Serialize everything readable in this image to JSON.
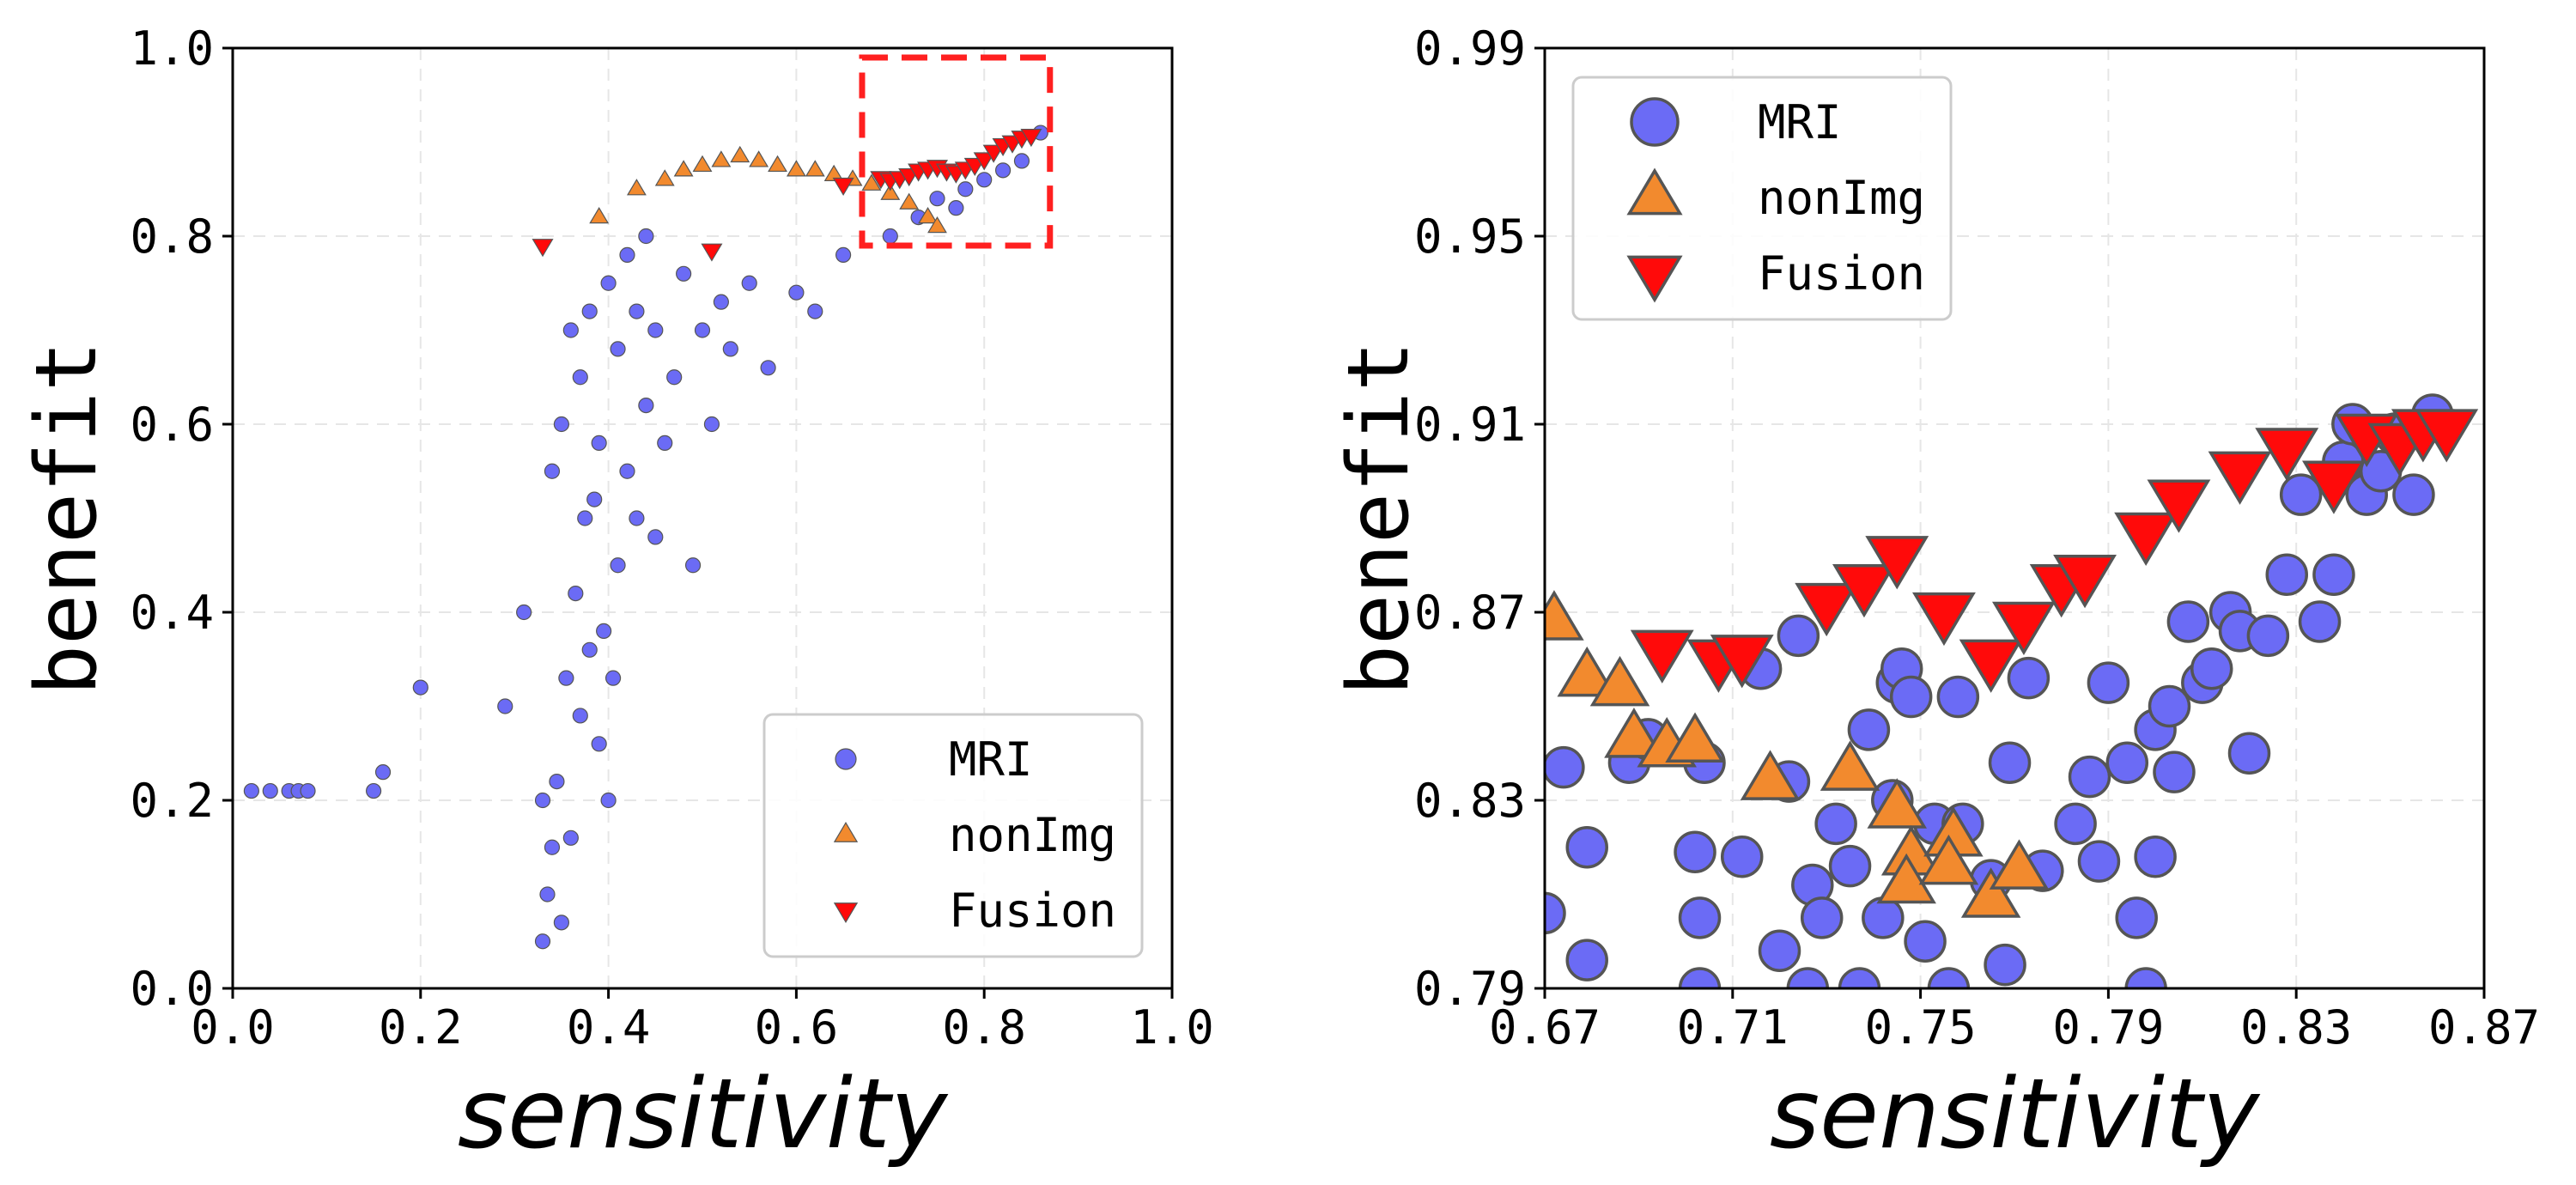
{
  "colors": {
    "mri": "#6b6bf5",
    "nonimg": "#f28a2e",
    "fusion": "#ff0a0a",
    "edge": "#555555",
    "zoom_box": "#ff2020"
  },
  "chart_data": [
    {
      "type": "scatter",
      "xlabel": "sensitivity",
      "ylabel": "benefit",
      "xlim": [
        0.0,
        1.0
      ],
      "ylim": [
        0.0,
        1.0
      ],
      "xticks": [
        "0.0",
        "0.2",
        "0.4",
        "0.6",
        "0.8",
        "1.0"
      ],
      "yticks": [
        "0.0",
        "0.2",
        "0.4",
        "0.6",
        "0.8",
        "1.0"
      ],
      "grid": true,
      "legend_position": "lower-right",
      "zoom_box": {
        "x": [
          0.67,
          0.87
        ],
        "y": [
          0.79,
          0.99
        ]
      },
      "series": [
        {
          "name": "MRI",
          "marker": "circle",
          "x": [
            0.02,
            0.04,
            0.06,
            0.07,
            0.08,
            0.15,
            0.16,
            0.2,
            0.29,
            0.31,
            0.33,
            0.33,
            0.335,
            0.34,
            0.34,
            0.345,
            0.35,
            0.35,
            0.355,
            0.36,
            0.36,
            0.365,
            0.37,
            0.37,
            0.375,
            0.38,
            0.38,
            0.385,
            0.39,
            0.39,
            0.395,
            0.4,
            0.4,
            0.405,
            0.41,
            0.41,
            0.42,
            0.42,
            0.43,
            0.43,
            0.44,
            0.44,
            0.45,
            0.45,
            0.46,
            0.47,
            0.48,
            0.49,
            0.5,
            0.51,
            0.52,
            0.53,
            0.55,
            0.57,
            0.6,
            0.62,
            0.65,
            0.7,
            0.73,
            0.75,
            0.77,
            0.78,
            0.8,
            0.82,
            0.84,
            0.86
          ],
          "y": [
            0.21,
            0.21,
            0.21,
            0.21,
            0.21,
            0.21,
            0.23,
            0.32,
            0.3,
            0.4,
            0.05,
            0.2,
            0.1,
            0.15,
            0.55,
            0.22,
            0.07,
            0.6,
            0.33,
            0.16,
            0.7,
            0.42,
            0.29,
            0.65,
            0.5,
            0.36,
            0.72,
            0.52,
            0.26,
            0.58,
            0.38,
            0.2,
            0.75,
            0.33,
            0.45,
            0.68,
            0.55,
            0.78,
            0.5,
            0.72,
            0.62,
            0.8,
            0.48,
            0.7,
            0.58,
            0.65,
            0.76,
            0.45,
            0.7,
            0.6,
            0.73,
            0.68,
            0.75,
            0.66,
            0.74,
            0.72,
            0.78,
            0.8,
            0.82,
            0.84,
            0.83,
            0.85,
            0.86,
            0.87,
            0.88,
            0.91
          ]
        },
        {
          "name": "nonImg",
          "marker": "triangle-up",
          "x": [
            0.39,
            0.43,
            0.46,
            0.48,
            0.5,
            0.52,
            0.54,
            0.56,
            0.58,
            0.6,
            0.62,
            0.64,
            0.66,
            0.68,
            0.7,
            0.72,
            0.74,
            0.75
          ],
          "y": [
            0.82,
            0.85,
            0.86,
            0.87,
            0.875,
            0.88,
            0.885,
            0.88,
            0.875,
            0.87,
            0.87,
            0.865,
            0.86,
            0.855,
            0.845,
            0.835,
            0.82,
            0.81
          ]
        },
        {
          "name": "Fusion",
          "marker": "triangle-down",
          "x": [
            0.33,
            0.51,
            0.65,
            0.69,
            0.7,
            0.71,
            0.72,
            0.73,
            0.74,
            0.75,
            0.76,
            0.77,
            0.78,
            0.79,
            0.8,
            0.81,
            0.82,
            0.83,
            0.84,
            0.85
          ],
          "y": [
            0.79,
            0.785,
            0.855,
            0.862,
            0.86,
            0.862,
            0.865,
            0.87,
            0.872,
            0.874,
            0.87,
            0.868,
            0.872,
            0.876,
            0.882,
            0.89,
            0.897,
            0.9,
            0.905,
            0.907
          ]
        }
      ]
    },
    {
      "type": "scatter",
      "xlabel": "sensitivity",
      "ylabel": "benefit",
      "xlim": [
        0.67,
        0.87
      ],
      "ylim": [
        0.79,
        0.99
      ],
      "xticks": [
        "0.67",
        "0.71",
        "0.75",
        "0.79",
        "0.83",
        "0.87"
      ],
      "yticks": [
        "0.79",
        "0.83",
        "0.87",
        "0.91",
        "0.95",
        "0.99"
      ],
      "grid": true,
      "legend_position": "top-left",
      "series": [
        {
          "name": "MRI",
          "marker": "circle",
          "x": [
            0.67,
            0.674,
            0.679,
            0.679,
            0.688,
            0.692,
            0.702,
            0.703,
            0.703,
            0.704,
            0.712,
            0.716,
            0.72,
            0.722,
            0.724,
            0.726,
            0.727,
            0.729,
            0.732,
            0.735,
            0.737,
            0.739,
            0.742,
            0.744,
            0.745,
            0.746,
            0.748,
            0.751,
            0.753,
            0.756,
            0.758,
            0.759,
            0.765,
            0.768,
            0.769,
            0.773,
            0.776,
            0.783,
            0.786,
            0.788,
            0.79,
            0.794,
            0.796,
            0.798,
            0.8,
            0.8,
            0.803,
            0.804,
            0.807,
            0.81,
            0.812,
            0.816,
            0.818,
            0.82,
            0.824,
            0.828,
            0.831,
            0.835,
            0.838,
            0.84,
            0.842,
            0.845,
            0.848,
            0.851,
            0.855,
            0.859
          ],
          "y": [
            0.806,
            0.837,
            0.796,
            0.82,
            0.838,
            0.843,
            0.819,
            0.805,
            0.79,
            0.838,
            0.818,
            0.858,
            0.798,
            0.834,
            0.865,
            0.79,
            0.812,
            0.805,
            0.825,
            0.816,
            0.79,
            0.845,
            0.805,
            0.83,
            0.855,
            0.858,
            0.852,
            0.8,
            0.825,
            0.79,
            0.852,
            0.825,
            0.813,
            0.795,
            0.838,
            0.856,
            0.815,
            0.825,
            0.835,
            0.817,
            0.855,
            0.838,
            0.805,
            0.79,
            0.845,
            0.818,
            0.85,
            0.836,
            0.868,
            0.855,
            0.858,
            0.87,
            0.866,
            0.84,
            0.865,
            0.878,
            0.895,
            0.868,
            0.878,
            0.902,
            0.91,
            0.895,
            0.9,
            0.908,
            0.895,
            0.912
          ]
        },
        {
          "name": "nonImg",
          "marker": "triangle-up",
          "x": [
            0.672,
            0.679,
            0.686,
            0.689,
            0.696,
            0.702,
            0.718,
            0.735,
            0.745,
            0.748,
            0.747,
            0.757,
            0.756,
            0.765,
            0.771
          ],
          "y": [
            0.868,
            0.856,
            0.854,
            0.843,
            0.841,
            0.842,
            0.834,
            0.836,
            0.828,
            0.818,
            0.812,
            0.822,
            0.816,
            0.809,
            0.815
          ]
        },
        {
          "name": "Fusion",
          "marker": "triangle-down",
          "x": [
            0.695,
            0.707,
            0.712,
            0.73,
            0.738,
            0.745,
            0.755,
            0.765,
            0.772,
            0.78,
            0.785,
            0.798,
            0.805,
            0.818,
            0.828,
            0.838,
            0.845,
            0.852,
            0.857,
            0.862
          ],
          "y": [
            0.862,
            0.86,
            0.861,
            0.872,
            0.876,
            0.882,
            0.87,
            0.86,
            0.868,
            0.876,
            0.878,
            0.887,
            0.894,
            0.9,
            0.905,
            0.898,
            0.908,
            0.906,
            0.909,
            0.909
          ]
        }
      ]
    }
  ]
}
